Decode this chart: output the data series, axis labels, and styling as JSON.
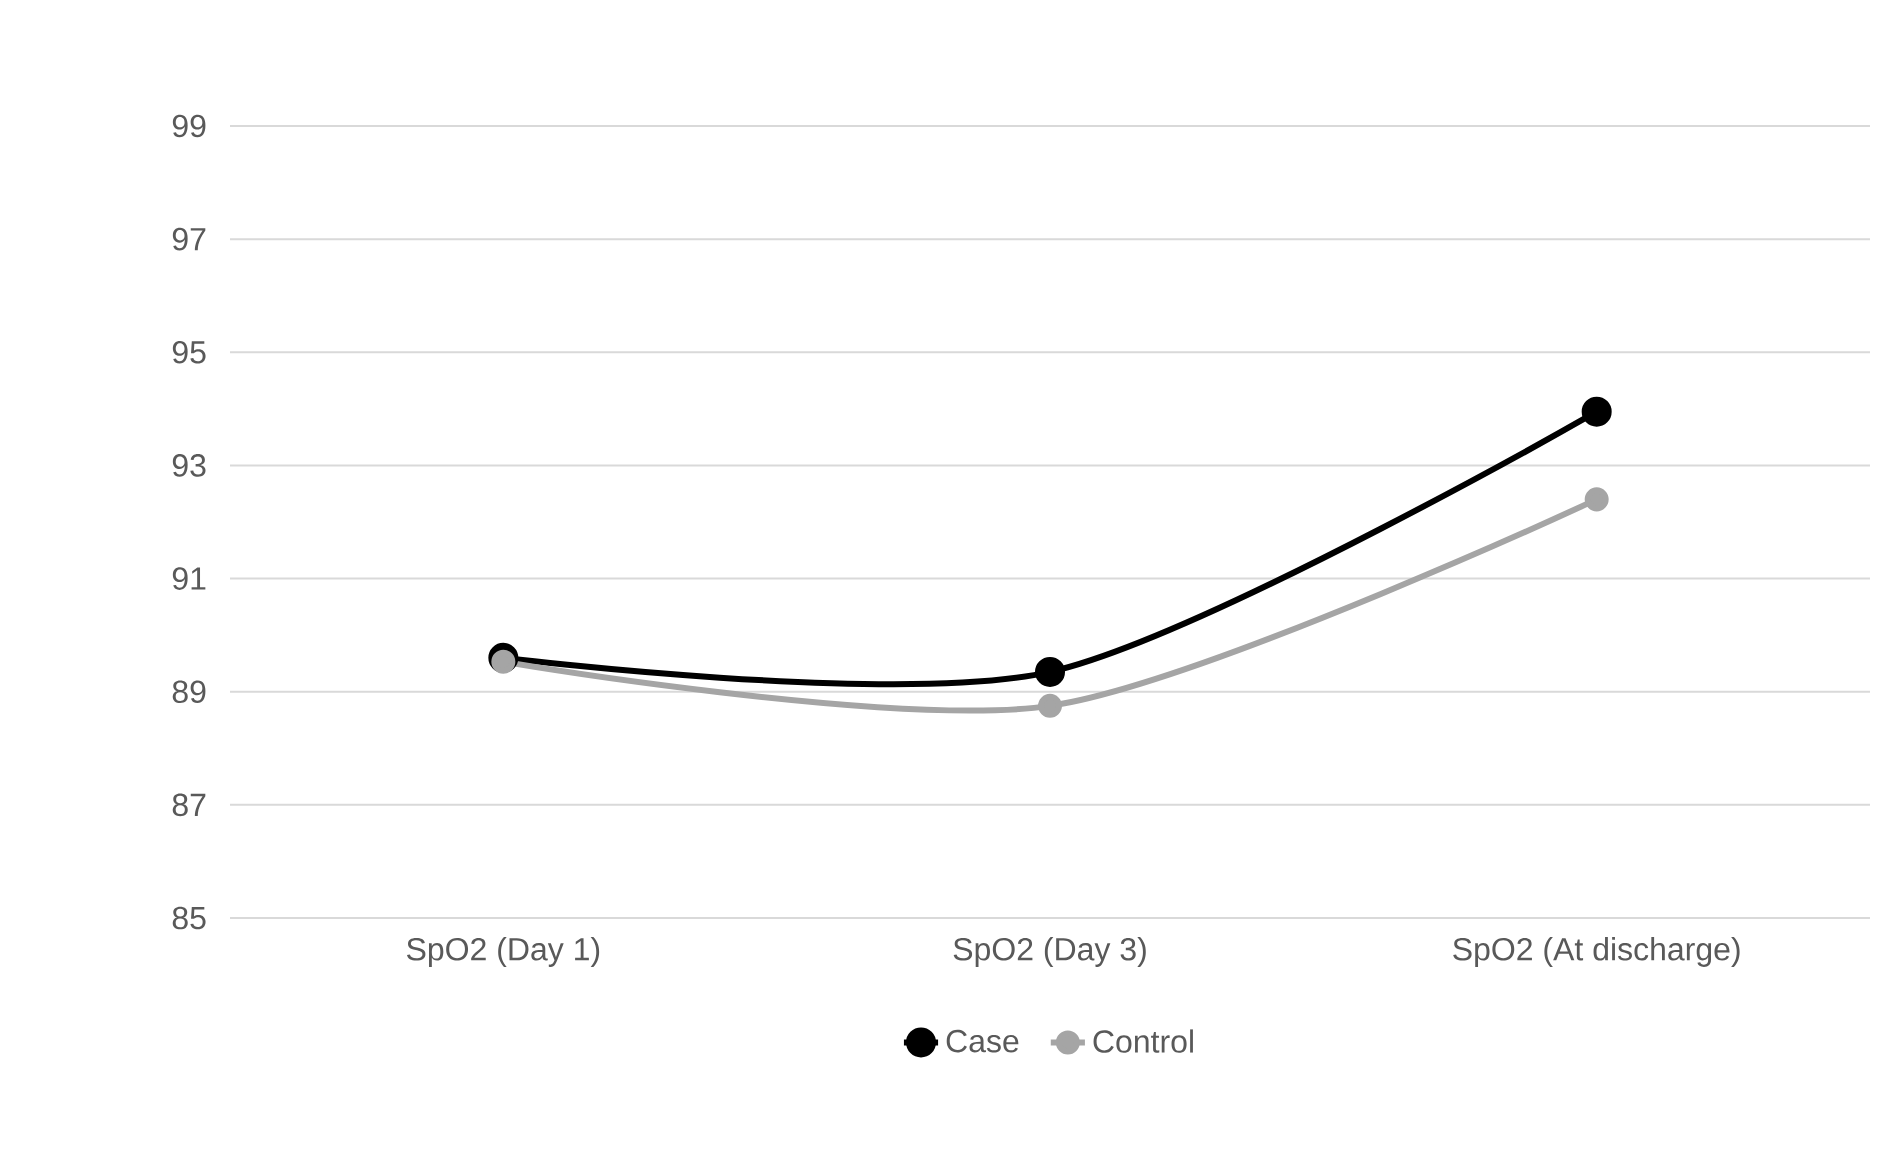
{
  "chart_data": {
    "type": "line",
    "categories": [
      "SpO2 (Day 1)",
      "SpO2 (Day 3)",
      "SpO2 (At discharge)"
    ],
    "series": [
      {
        "name": "Case",
        "color": "#000000",
        "values": [
          89.6,
          89.35,
          93.95
        ]
      },
      {
        "name": "Control",
        "color": "#a5a5a5",
        "values": [
          89.53,
          88.75,
          92.4
        ]
      }
    ],
    "ylim": [
      85,
      99
    ],
    "yticks": [
      85,
      87,
      89,
      91,
      93,
      95,
      97,
      99
    ],
    "grid": "y",
    "legend": "bottom",
    "marker": "circle",
    "line_style": "solid"
  }
}
